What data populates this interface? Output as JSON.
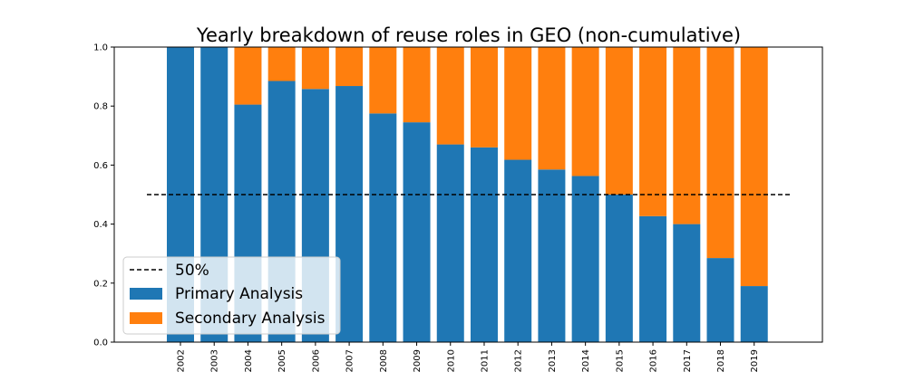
{
  "chart_data": {
    "type": "bar",
    "stacked": true,
    "title": "Yearly breakdown of reuse roles in GEO (non-cumulative)",
    "xlabel": "",
    "ylabel": "",
    "ylim": [
      0,
      1
    ],
    "yticks": [
      "0.0",
      "0.2",
      "0.4",
      "0.6",
      "0.8",
      "1.0"
    ],
    "categories": [
      "2002",
      "2003",
      "2004",
      "2005",
      "2006",
      "2007",
      "2008",
      "2009",
      "2010",
      "2011",
      "2012",
      "2013",
      "2014",
      "2015",
      "2016",
      "2017",
      "2018",
      "2019"
    ],
    "series": [
      {
        "name": "Primary Analysis",
        "color": "#1f77b4",
        "values": [
          1.0,
          1.0,
          0.805,
          0.885,
          0.858,
          0.868,
          0.775,
          0.745,
          0.67,
          0.66,
          0.618,
          0.585,
          0.563,
          0.5,
          0.427,
          0.4,
          0.285,
          0.19
        ]
      },
      {
        "name": "Secondary Analysis",
        "color": "#ff7f0e",
        "values": [
          0.0,
          0.0,
          0.195,
          0.115,
          0.142,
          0.132,
          0.225,
          0.255,
          0.33,
          0.34,
          0.382,
          0.415,
          0.437,
          0.5,
          0.573,
          0.6,
          0.715,
          0.81
        ]
      }
    ],
    "reference_line": {
      "name": "50%",
      "value": 0.5,
      "style": "dashed",
      "color": "#000000"
    },
    "grid": false,
    "legend": {
      "placement": "lower-left"
    }
  }
}
